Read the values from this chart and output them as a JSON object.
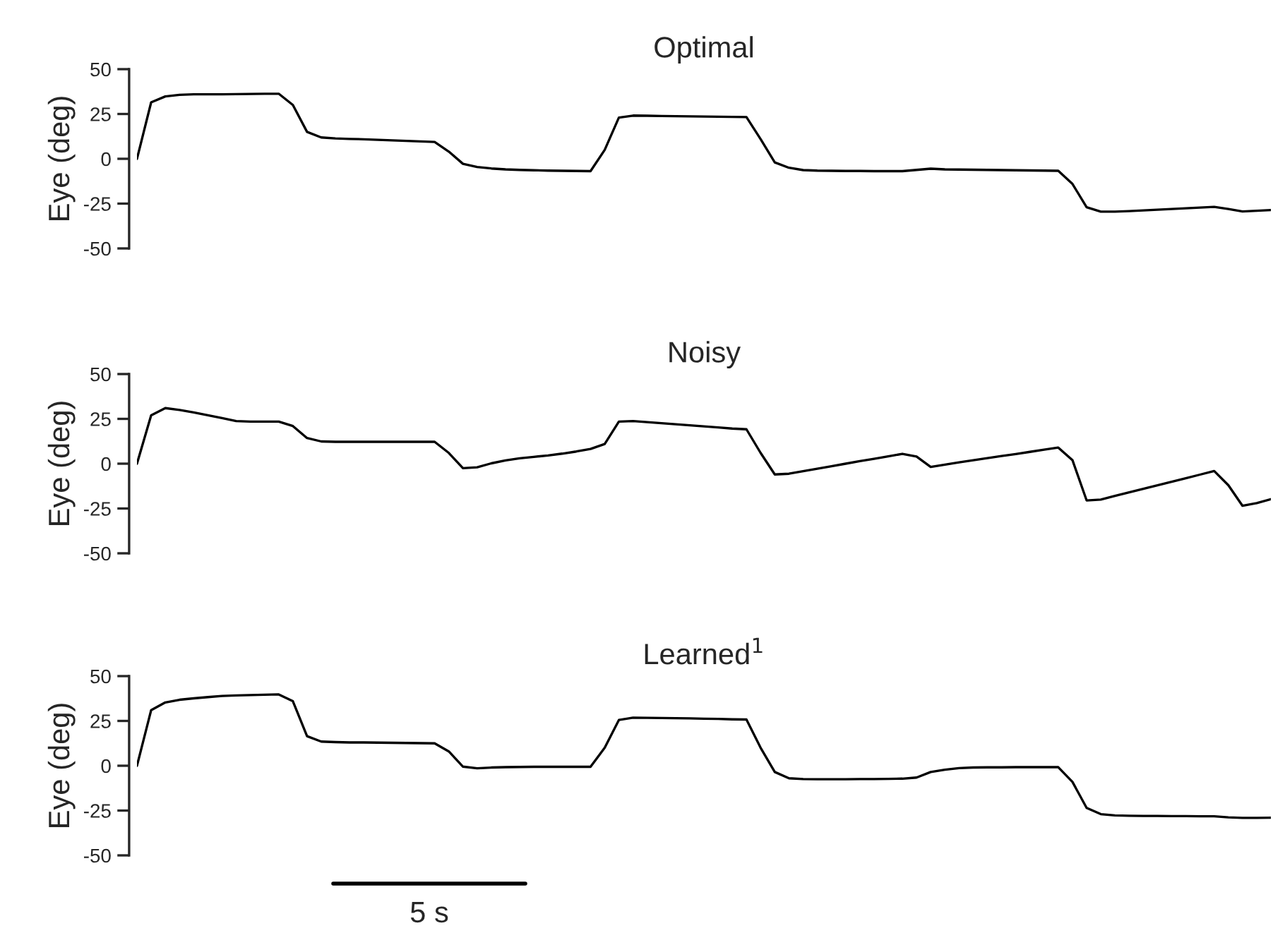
{
  "chart_data": [
    {
      "type": "line",
      "title": "Optimal",
      "ylabel": "Eye (deg)",
      "ylim": [
        -50,
        50
      ],
      "yticks": [
        -50,
        -25,
        0,
        25,
        50
      ],
      "tick_labels": "y",
      "grid": false,
      "legend": false,
      "categories": [
        null,
        null,
        null,
        null,
        null,
        null,
        null,
        null,
        null,
        null,
        null,
        null,
        null,
        null,
        null,
        null,
        null,
        null,
        null,
        null,
        null,
        null,
        null,
        null,
        null,
        null,
        null,
        null,
        null,
        null,
        null,
        null,
        null,
        null,
        null,
        null,
        null,
        null,
        null,
        null,
        null,
        null,
        null,
        null,
        null,
        null,
        null,
        null,
        null,
        null,
        null,
        null,
        null,
        null,
        null,
        null,
        null,
        null,
        null,
        null,
        null,
        null,
        null,
        null,
        null,
        null,
        null,
        null,
        null,
        null,
        null,
        null,
        null,
        null,
        null,
        null,
        null,
        null,
        null,
        null,
        null
      ],
      "series": [
        {
          "color": "#000000",
          "values": [
            0,
            31.5,
            34.8,
            35.7,
            36,
            36,
            36,
            36.1,
            36.2,
            36.3,
            36.3,
            30,
            15,
            11.9,
            11.4,
            11.1,
            10.9,
            10.6,
            10.3,
            10,
            9.7,
            9.4,
            4,
            -2.8,
            -4.6,
            -5.4,
            -5.9,
            -6.2,
            -6.4,
            -6.6,
            -6.7,
            -6.8,
            -6.9,
            5,
            23,
            24.1,
            24,
            23.9,
            23.8,
            23.7,
            23.6,
            23.5,
            23.4,
            23.3,
            11,
            -2,
            -5,
            -6.3,
            -6.6,
            -6.7,
            -6.8,
            -6.8,
            -6.9,
            -6.9,
            -6.9,
            -6.2,
            -5.5,
            -5.9,
            -6,
            -6.1,
            -6.2,
            -6.3,
            -6.4,
            -6.5,
            -6.6,
            -6.7,
            -14,
            -27,
            -29.5,
            -29.5,
            -29.2,
            -28.8,
            -28.4,
            -28,
            -27.6,
            -27.2,
            -26.8,
            -28,
            -29.4,
            -29,
            -28.6
          ]
        }
      ]
    },
    {
      "type": "line",
      "title": "Noisy",
      "ylabel": "Eye (deg)",
      "ylim": [
        -50,
        50
      ],
      "yticks": [
        -50,
        -25,
        0,
        25,
        50
      ],
      "tick_labels": "y",
      "grid": false,
      "legend": false,
      "categories": [
        null,
        null,
        null,
        null,
        null,
        null,
        null,
        null,
        null,
        null,
        null,
        null,
        null,
        null,
        null,
        null,
        null,
        null,
        null,
        null,
        null,
        null,
        null,
        null,
        null,
        null,
        null,
        null,
        null,
        null,
        null,
        null,
        null,
        null,
        null,
        null,
        null,
        null,
        null,
        null,
        null,
        null,
        null,
        null,
        null,
        null,
        null,
        null,
        null,
        null,
        null,
        null,
        null,
        null,
        null,
        null,
        null,
        null,
        null,
        null,
        null,
        null,
        null,
        null,
        null,
        null,
        null,
        null,
        null,
        null,
        null,
        null,
        null,
        null,
        null,
        null,
        null,
        null,
        null,
        null,
        null
      ],
      "series": [
        {
          "color": "#000000",
          "values": [
            0,
            27,
            31,
            30,
            28.6,
            27,
            25.4,
            23.8,
            23.5,
            23.5,
            23.5,
            21,
            14.3,
            12.4,
            12.2,
            12.2,
            12.2,
            12.2,
            12.2,
            12.2,
            12.2,
            12.2,
            6,
            -2.5,
            -2,
            0.2,
            1.8,
            3,
            3.8,
            4.6,
            5.6,
            6.8,
            8.2,
            11,
            23.5,
            23.8,
            23.2,
            22.6,
            22,
            21.4,
            20.8,
            20.2,
            19.6,
            19.2,
            6,
            -6,
            -5.6,
            -4.2,
            -2.8,
            -1.4,
            0,
            1.4,
            2.7,
            4.1,
            5.5,
            4,
            -1.8,
            -0.5,
            0.7,
            1.9,
            3.1,
            4.3,
            5.4,
            6.6,
            7.8,
            9,
            2,
            -20.5,
            -20,
            -18,
            -16,
            -14,
            -12.1,
            -10.1,
            -8.1,
            -6.1,
            -4.1,
            -12,
            -23.5,
            -22,
            -19.8
          ]
        }
      ]
    },
    {
      "type": "line",
      "title": "Learned$^{1}$",
      "ylabel": "Eye (deg)",
      "ylim": [
        -50,
        50
      ],
      "yticks": [
        -50,
        -25,
        0,
        25,
        50
      ],
      "tick_labels": "y",
      "grid": false,
      "legend": false,
      "annotations": [
        "5 s"
      ],
      "categories": [
        null,
        null,
        null,
        null,
        null,
        null,
        null,
        null,
        null,
        null,
        null,
        null,
        null,
        null,
        null,
        null,
        null,
        null,
        null,
        null,
        null,
        null,
        null,
        null,
        null,
        null,
        null,
        null,
        null,
        null,
        null,
        null,
        null,
        null,
        null,
        null,
        null,
        null,
        null,
        null,
        null,
        null,
        null,
        null,
        null,
        null,
        null,
        null,
        null,
        null,
        null,
        null,
        null,
        null,
        null,
        null,
        null,
        null,
        null,
        null,
        null,
        null,
        null,
        null,
        null,
        null,
        null,
        null,
        null,
        null,
        null,
        null,
        null,
        null,
        null,
        null,
        null,
        null,
        null,
        null,
        null
      ],
      "series": [
        {
          "color": "#000000",
          "values": [
            0,
            31,
            35.3,
            36.8,
            37.6,
            38.3,
            38.9,
            39.2,
            39.4,
            39.6,
            39.8,
            36,
            16.5,
            13.5,
            13.2,
            13,
            13,
            12.9,
            12.8,
            12.7,
            12.6,
            12.5,
            8,
            -0.5,
            -1.4,
            -1,
            -0.8,
            -0.7,
            -0.6,
            -0.6,
            -0.6,
            -0.6,
            -0.6,
            10,
            25.5,
            26.8,
            26.7,
            26.6,
            26.5,
            26.4,
            26.2,
            26.1,
            25.9,
            25.8,
            10,
            -3.5,
            -7,
            -7.4,
            -7.5,
            -7.5,
            -7.5,
            -7.4,
            -7.4,
            -7.3,
            -7.2,
            -6.6,
            -3.5,
            -2.2,
            -1.3,
            -1,
            -0.9,
            -0.9,
            -0.8,
            -0.8,
            -0.8,
            -0.8,
            -9,
            -23.5,
            -27,
            -27.7,
            -27.9,
            -28,
            -28,
            -28.1,
            -28.1,
            -28.2,
            -28.2,
            -28.8,
            -29.1,
            -29.1,
            -29
          ]
        }
      ]
    }
  ]
}
